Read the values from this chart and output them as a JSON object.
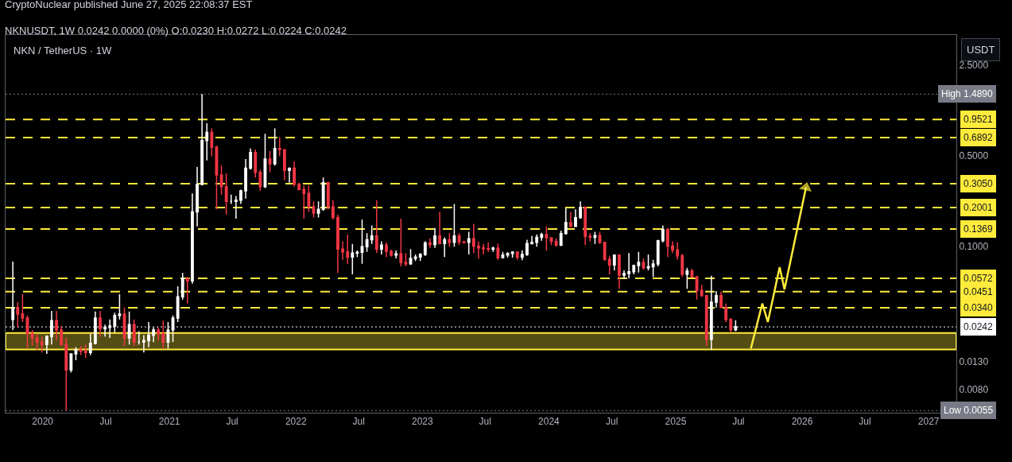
{
  "chart_data": {
    "type": "candlestick",
    "title": "CryptoNuclear published June 27, 2025 22:08:37 EST",
    "subtitle": "NKNUSDT, 1W 0.0242 0.0000 (0%) O:0.0230 H:0.0272 L:0.0224 C:0.0242",
    "ylabel": "USDT",
    "annotations": [
      "NKN / TetherUS · 1W"
    ],
    "x": [
      "2019-10-07",
      "2019-10-21",
      "2019-11-04",
      "2019-11-18",
      "2019-12-02",
      "2019-12-16",
      "2019-12-30",
      "2020-01-13",
      "2020-01-27",
      "2020-02-10",
      "2020-02-24",
      "2020-03-09",
      "2020-03-23",
      "2020-04-06",
      "2020-04-20",
      "2020-05-04",
      "2020-05-18",
      "2020-06-01",
      "2020-06-15",
      "2020-06-29",
      "2020-07-13",
      "2020-07-27",
      "2020-08-10",
      "2020-08-24",
      "2020-09-07",
      "2020-09-21",
      "2020-10-05",
      "2020-10-19",
      "2020-11-02",
      "2020-11-16",
      "2020-11-30",
      "2020-12-14",
      "2020-12-28",
      "2021-01-11",
      "2021-01-25",
      "2021-02-08",
      "2021-02-22",
      "2021-03-08",
      "2021-03-22",
      "2021-04-05",
      "2021-04-19",
      "2021-05-03",
      "2021-05-17",
      "2021-05-31",
      "2021-06-14",
      "2021-06-28",
      "2021-07-12",
      "2021-07-26",
      "2021-08-09",
      "2021-08-23",
      "2021-09-06",
      "2021-09-20",
      "2021-10-04",
      "2021-10-18",
      "2021-11-01",
      "2021-11-15",
      "2021-11-29",
      "2021-12-13",
      "2021-12-27",
      "2022-01-10",
      "2022-01-24",
      "2022-02-07",
      "2022-02-21",
      "2022-03-07",
      "2022-03-21",
      "2022-04-04",
      "2022-04-18",
      "2022-05-02",
      "2022-05-16",
      "2022-05-30",
      "2022-06-13",
      "2022-06-27",
      "2022-07-11",
      "2022-07-25",
      "2022-08-08",
      "2022-08-22",
      "2022-09-05",
      "2022-09-19",
      "2022-10-03",
      "2022-10-17",
      "2022-10-31",
      "2022-11-14",
      "2022-11-28",
      "2022-12-12",
      "2022-12-26",
      "2023-01-09",
      "2023-01-23",
      "2023-02-06",
      "2023-02-20",
      "2023-03-06",
      "2023-03-20",
      "2023-04-03",
      "2023-04-17",
      "2023-05-01",
      "2023-05-15",
      "2023-05-29",
      "2023-06-12",
      "2023-06-26",
      "2023-07-10",
      "2023-07-24",
      "2023-08-07",
      "2023-08-21",
      "2023-09-04",
      "2023-09-18",
      "2023-10-02",
      "2023-10-16",
      "2023-10-30",
      "2023-11-13",
      "2023-11-27",
      "2023-12-11",
      "2023-12-25",
      "2024-01-08",
      "2024-01-22",
      "2024-02-05",
      "2024-02-19",
      "2024-03-04",
      "2024-03-18",
      "2024-04-01",
      "2024-04-15",
      "2024-04-29",
      "2024-05-13",
      "2024-05-27",
      "2024-06-10",
      "2024-06-24",
      "2024-07-08",
      "2024-07-22",
      "2024-08-05",
      "2024-08-19",
      "2024-09-02",
      "2024-09-16",
      "2024-09-30",
      "2024-10-14",
      "2024-10-28",
      "2024-11-11",
      "2024-11-25",
      "2024-12-09",
      "2024-12-23",
      "2025-01-06",
      "2025-01-20",
      "2025-02-03",
      "2025-02-17",
      "2025-03-03",
      "2025-03-17",
      "2025-03-31",
      "2025-04-14",
      "2025-04-28",
      "2025-05-12",
      "2025-05-26",
      "2025-06-09",
      "2025-06-23"
    ],
    "ohlc": [
      [
        0.0276,
        0.0769,
        0.0229,
        0.0341
      ],
      [
        0.0341,
        0.0375,
        0.024,
        0.0303
      ],
      [
        0.0303,
        0.0432,
        0.0264,
        0.0283
      ],
      [
        0.0283,
        0.0296,
        0.0165,
        0.0214
      ],
      [
        0.0214,
        0.0229,
        0.0173,
        0.0199
      ],
      [
        0.0199,
        0.0214,
        0.0161,
        0.0185
      ],
      [
        0.0185,
        0.0204,
        0.0154,
        0.0177
      ],
      [
        0.0177,
        0.0209,
        0.015,
        0.0204
      ],
      [
        0.0204,
        0.0321,
        0.0177,
        0.027
      ],
      [
        0.027,
        0.0321,
        0.019,
        0.0229
      ],
      [
        0.0229,
        0.0246,
        0.0173,
        0.0177
      ],
      [
        0.0177,
        0.0199,
        0.0055,
        0.0113
      ],
      [
        0.0113,
        0.015,
        0.0108,
        0.015
      ],
      [
        0.015,
        0.0169,
        0.0134,
        0.0161
      ],
      [
        0.0161,
        0.0173,
        0.0147,
        0.0157
      ],
      [
        0.0157,
        0.0177,
        0.014,
        0.0154
      ],
      [
        0.0154,
        0.0214,
        0.0147,
        0.0181
      ],
      [
        0.0181,
        0.0318,
        0.0177,
        0.0283
      ],
      [
        0.0283,
        0.0321,
        0.0204,
        0.0234
      ],
      [
        0.0234,
        0.0252,
        0.0204,
        0.024
      ],
      [
        0.024,
        0.0276,
        0.0199,
        0.0246
      ],
      [
        0.0246,
        0.0311,
        0.0219,
        0.0296
      ],
      [
        0.0296,
        0.0432,
        0.0276,
        0.0303
      ],
      [
        0.0303,
        0.0341,
        0.0173,
        0.0199
      ],
      [
        0.0199,
        0.0318,
        0.0177,
        0.0252
      ],
      [
        0.0252,
        0.0276,
        0.0173,
        0.0185
      ],
      [
        0.0185,
        0.0224,
        0.0177,
        0.0185
      ],
      [
        0.0185,
        0.0209,
        0.0154,
        0.019
      ],
      [
        0.019,
        0.0264,
        0.0169,
        0.0209
      ],
      [
        0.0209,
        0.024,
        0.0185,
        0.0229
      ],
      [
        0.0229,
        0.024,
        0.019,
        0.0214
      ],
      [
        0.0214,
        0.027,
        0.0165,
        0.0185
      ],
      [
        0.0185,
        0.0264,
        0.0165,
        0.0229
      ],
      [
        0.0229,
        0.0296,
        0.0185,
        0.0283
      ],
      [
        0.0283,
        0.0497,
        0.0264,
        0.0412
      ],
      [
        0.0412,
        0.0628,
        0.0393,
        0.0572
      ],
      [
        0.0572,
        0.0586,
        0.0366,
        0.0546
      ],
      [
        0.0546,
        0.257,
        0.052,
        0.185
      ],
      [
        0.185,
        0.41,
        0.143,
        0.302
      ],
      [
        0.302,
        1.489,
        0.296,
        0.655
      ],
      [
        0.655,
        0.89,
        0.461,
        0.755
      ],
      [
        0.755,
        0.81,
        0.495,
        0.583
      ],
      [
        0.583,
        0.597,
        0.194,
        0.356
      ],
      [
        0.356,
        0.42,
        0.251,
        0.289
      ],
      [
        0.289,
        0.365,
        0.176,
        0.223
      ],
      [
        0.223,
        0.251,
        0.213,
        0.223
      ],
      [
        0.223,
        0.245,
        0.164,
        0.228
      ],
      [
        0.228,
        0.275,
        0.213,
        0.269
      ],
      [
        0.269,
        0.472,
        0.234,
        0.401
      ],
      [
        0.401,
        0.569,
        0.392,
        0.531
      ],
      [
        0.531,
        0.557,
        0.34,
        0.373
      ],
      [
        0.373,
        0.392,
        0.269,
        0.289
      ],
      [
        0.289,
        0.738,
        0.282,
        0.472
      ],
      [
        0.472,
        0.544,
        0.373,
        0.434
      ],
      [
        0.434,
        0.81,
        0.42,
        0.569
      ],
      [
        0.569,
        0.693,
        0.495,
        0.557
      ],
      [
        0.557,
        0.56,
        0.324,
        0.386
      ],
      [
        0.386,
        0.401,
        0.31,
        0.401
      ],
      [
        0.401,
        0.451,
        0.289,
        0.302
      ],
      [
        0.302,
        0.31,
        0.272,
        0.275
      ],
      [
        0.275,
        0.296,
        0.164,
        0.257
      ],
      [
        0.257,
        0.296,
        0.185,
        0.203
      ],
      [
        0.203,
        0.223,
        0.168,
        0.181
      ],
      [
        0.181,
        0.223,
        0.168,
        0.194
      ],
      [
        0.194,
        0.34,
        0.189,
        0.31
      ],
      [
        0.31,
        0.315,
        0.194,
        0.203
      ],
      [
        0.203,
        0.228,
        0.162,
        0.168
      ],
      [
        0.168,
        0.176,
        0.0628,
        0.0959
      ],
      [
        0.0959,
        0.11,
        0.0794,
        0.0914
      ],
      [
        0.0914,
        0.124,
        0.074,
        0.0833
      ],
      [
        0.0833,
        0.105,
        0.0614,
        0.0894
      ],
      [
        0.0894,
        0.0936,
        0.0833,
        0.0906
      ],
      [
        0.0906,
        0.162,
        0.074,
        0.1
      ],
      [
        0.1,
        0.127,
        0.0914,
        0.113
      ],
      [
        0.113,
        0.146,
        0.105,
        0.121
      ],
      [
        0.121,
        0.228,
        0.0894,
        0.0959
      ],
      [
        0.0959,
        0.11,
        0.0873,
        0.103
      ],
      [
        0.103,
        0.108,
        0.0833,
        0.0923
      ],
      [
        0.0923,
        0.095,
        0.084,
        0.0864
      ],
      [
        0.0864,
        0.0936,
        0.0813,
        0.0881
      ],
      [
        0.0881,
        0.164,
        0.0706,
        0.0758
      ],
      [
        0.0758,
        0.0894,
        0.0706,
        0.074
      ],
      [
        0.074,
        0.0959,
        0.0723,
        0.0813
      ],
      [
        0.0813,
        0.0873,
        0.0776,
        0.0833
      ],
      [
        0.0833,
        0.0894,
        0.0776,
        0.0873
      ],
      [
        0.0873,
        0.11,
        0.0852,
        0.107
      ],
      [
        0.107,
        0.116,
        0.0981,
        0.104
      ],
      [
        0.104,
        0.139,
        0.0981,
        0.121
      ],
      [
        0.121,
        0.185,
        0.105,
        0.106
      ],
      [
        0.106,
        0.118,
        0.0833,
        0.113
      ],
      [
        0.113,
        0.127,
        0.1,
        0.108
      ],
      [
        0.108,
        0.213,
        0.1,
        0.121
      ],
      [
        0.121,
        0.127,
        0.103,
        0.109
      ],
      [
        0.109,
        0.111,
        0.105,
        0.108
      ],
      [
        0.108,
        0.13,
        0.0873,
        0.115
      ],
      [
        0.115,
        0.15,
        0.0894,
        0.101
      ],
      [
        0.101,
        0.11,
        0.0813,
        0.0981
      ],
      [
        0.0981,
        0.105,
        0.0873,
        0.0967
      ],
      [
        0.0967,
        0.108,
        0.0914,
        0.0959
      ],
      [
        0.0959,
        0.1,
        0.0914,
        0.0976
      ],
      [
        0.0976,
        0.106,
        0.0794,
        0.0825
      ],
      [
        0.0825,
        0.0914,
        0.0813,
        0.0864
      ],
      [
        0.0864,
        0.0906,
        0.0825,
        0.0888
      ],
      [
        0.0888,
        0.0923,
        0.0825,
        0.091
      ],
      [
        0.091,
        0.0923,
        0.0794,
        0.0833
      ],
      [
        0.0833,
        0.0936,
        0.0787,
        0.0873
      ],
      [
        0.0873,
        0.113,
        0.0852,
        0.106
      ],
      [
        0.106,
        0.121,
        0.104,
        0.108
      ],
      [
        0.108,
        0.124,
        0.1,
        0.118
      ],
      [
        0.118,
        0.128,
        0.111,
        0.124
      ],
      [
        0.124,
        0.143,
        0.0936,
        0.117
      ],
      [
        0.117,
        0.118,
        0.103,
        0.11
      ],
      [
        0.11,
        0.116,
        0.1,
        0.103
      ],
      [
        0.103,
        0.133,
        0.101,
        0.126
      ],
      [
        0.126,
        0.198,
        0.124,
        0.153
      ],
      [
        0.153,
        0.185,
        0.141,
        0.143
      ],
      [
        0.143,
        0.194,
        0.142,
        0.167
      ],
      [
        0.167,
        0.223,
        0.164,
        0.201
      ],
      [
        0.201,
        0.205,
        0.103,
        0.12
      ],
      [
        0.12,
        0.127,
        0.11,
        0.118
      ],
      [
        0.118,
        0.13,
        0.105,
        0.122
      ],
      [
        0.122,
        0.13,
        0.105,
        0.108
      ],
      [
        0.108,
        0.108,
        0.0776,
        0.0802
      ],
      [
        0.0802,
        0.0852,
        0.0614,
        0.0723
      ],
      [
        0.0723,
        0.0873,
        0.0658,
        0.0864
      ],
      [
        0.0864,
        0.0873,
        0.0474,
        0.0605
      ],
      [
        0.0605,
        0.0658,
        0.0566,
        0.0622
      ],
      [
        0.0622,
        0.0894,
        0.0572,
        0.0643
      ],
      [
        0.0643,
        0.073,
        0.0614,
        0.0717
      ],
      [
        0.0717,
        0.0914,
        0.0634,
        0.0758
      ],
      [
        0.0758,
        0.0813,
        0.0665,
        0.069
      ],
      [
        0.069,
        0.0873,
        0.0658,
        0.07
      ],
      [
        0.07,
        0.0794,
        0.0586,
        0.0736
      ],
      [
        0.0736,
        0.113,
        0.0706,
        0.111
      ],
      [
        0.111,
        0.146,
        0.108,
        0.136
      ],
      [
        0.136,
        0.139,
        0.0833,
        0.101
      ],
      [
        0.101,
        0.11,
        0.0894,
        0.0945
      ],
      [
        0.0945,
        0.108,
        0.0794,
        0.0852
      ],
      [
        0.0852,
        0.0881,
        0.0586,
        0.0614
      ],
      [
        0.0614,
        0.069,
        0.0474,
        0.0652
      ],
      [
        0.0652,
        0.0674,
        0.0578,
        0.0586
      ],
      [
        0.0586,
        0.0599,
        0.0393,
        0.0461
      ],
      [
        0.0461,
        0.0509,
        0.0412,
        0.0421
      ],
      [
        0.0421,
        0.0425,
        0.0173,
        0.0194
      ],
      [
        0.0194,
        0.0599,
        0.0161,
        0.0375
      ],
      [
        0.0375,
        0.0457,
        0.0341,
        0.0421
      ],
      [
        0.0421,
        0.0452,
        0.0338,
        0.0341
      ],
      [
        0.0341,
        0.0366,
        0.0264,
        0.0276
      ],
      [
        0.0276,
        0.0283,
        0.0219,
        0.023
      ],
      [
        0.023,
        0.0272,
        0.0224,
        0.0242
      ]
    ],
    "colors": [
      "#ffffff",
      "#f23645",
      "#f23645",
      "#f23645",
      "#f23645",
      "#f23645",
      "#f23645",
      "#ffffff",
      "#ffffff",
      "#f23645",
      "#f23645",
      "#f23645",
      "#ffffff",
      "#ffffff",
      "#f23645",
      "#f23645",
      "#ffffff",
      "#ffffff",
      "#f23645",
      "#ffffff",
      "#ffffff",
      "#ffffff",
      "#ffffff",
      "#f23645",
      "#ffffff",
      "#f23645",
      "#ffffff",
      "#ffffff",
      "#ffffff",
      "#ffffff",
      "#f23645",
      "#f23645",
      "#ffffff",
      "#ffffff",
      "#ffffff",
      "#ffffff",
      "#f23645",
      "#ffffff",
      "#ffffff",
      "#ffffff",
      "#ffffff",
      "#f23645",
      "#f23645",
      "#f23645",
      "#f23645",
      "#ffffff",
      "#ffffff",
      "#ffffff",
      "#ffffff",
      "#ffffff",
      "#f23645",
      "#f23645",
      "#ffffff",
      "#f23645",
      "#ffffff",
      "#f23645",
      "#f23645",
      "#ffffff",
      "#f23645",
      "#f23645",
      "#f23645",
      "#f23645",
      "#f23645",
      "#ffffff",
      "#ffffff",
      "#f23645",
      "#f23645",
      "#f23645",
      "#f23645",
      "#f23645",
      "#ffffff",
      "#ffffff",
      "#ffffff",
      "#ffffff",
      "#ffffff",
      "#f23645",
      "#ffffff",
      "#f23645",
      "#f23645",
      "#ffffff",
      "#f23645",
      "#f23645",
      "#ffffff",
      "#ffffff",
      "#ffffff",
      "#ffffff",
      "#f23645",
      "#ffffff",
      "#f23645",
      "#ffffff",
      "#f23645",
      "#ffffff",
      "#f23645",
      "#f23645",
      "#ffffff",
      "#f23645",
      "#f23645",
      "#f23645",
      "#f23645",
      "#ffffff",
      "#f23645",
      "#ffffff",
      "#ffffff",
      "#ffffff",
      "#f23645",
      "#ffffff",
      "#ffffff",
      "#ffffff",
      "#ffffff",
      "#ffffff",
      "#f23645",
      "#f23645",
      "#f23645",
      "#ffffff",
      "#ffffff",
      "#f23645",
      "#ffffff",
      "#ffffff",
      "#f23645",
      "#f23645",
      "#ffffff",
      "#f23645",
      "#f23645",
      "#f23645",
      "#ffffff",
      "#f23645",
      "#ffffff",
      "#ffffff",
      "#ffffff",
      "#ffffff",
      "#f23645",
      "#ffffff",
      "#ffffff",
      "#ffffff",
      "#ffffff",
      "#f23645",
      "#f23645",
      "#f23645",
      "#f23645",
      "#ffffff",
      "#f23645",
      "#f23645",
      "#f23645",
      "#f23645",
      "#ffffff",
      "#ffffff",
      "#f23645",
      "#f23645",
      "#f23645",
      "#ffffff"
    ],
    "series": [
      {
        "type": "line",
        "x": [
          "2025-08-06",
          "2025-09-08",
          "2025-09-24",
          "2025-10-28",
          "2025-11-11",
          "2026-01-12"
        ],
        "values": [
          0.0165,
          0.0366,
          0.0264,
          0.0697,
          0.047,
          0.285
        ],
        "color": "#ffeb3b"
      }
    ],
    "log": "y",
    "xlim": [
      "2019-09-16",
      "2027-03-22"
    ],
    "ylim": [
      0.0053,
      4.24
    ],
    "xticks": [
      {
        "value": "2020-01-01",
        "label": "2020"
      },
      {
        "value": "2020-07-01",
        "label": "Jul"
      },
      {
        "value": "2021-01-01",
        "label": "2021"
      },
      {
        "value": "2021-07-01",
        "label": "Jul"
      },
      {
        "value": "2022-01-01",
        "label": "2022"
      },
      {
        "value": "2022-07-01",
        "label": "Jul"
      },
      {
        "value": "2023-01-01",
        "label": "2023"
      },
      {
        "value": "2023-07-01",
        "label": "Jul"
      },
      {
        "value": "2024-01-01",
        "label": "2024"
      },
      {
        "value": "2024-07-01",
        "label": "Jul"
      },
      {
        "value": "2025-01-01",
        "label": "2025"
      },
      {
        "value": "2025-07-01",
        "label": "Jul"
      },
      {
        "value": "2026-01-01",
        "label": "2026"
      },
      {
        "value": "2026-07-01",
        "label": "Jul"
      },
      {
        "value": "2027-01-01",
        "label": "2027"
      }
    ],
    "yticks": [
      {
        "value": 2.5,
        "label": "2.5000"
      },
      {
        "value": 0.5,
        "label": "0.5000"
      },
      {
        "value": 0.1,
        "label": "0.1000"
      },
      {
        "value": 0.013,
        "label": "0.0130"
      },
      {
        "value": 0.008,
        "label": "0.0080"
      }
    ],
    "ref_lines": [
      {
        "axis": "y",
        "value": 1.489,
        "label": "High 1.4890",
        "color": "#787b86",
        "line_style": "dotted"
      },
      {
        "axis": "y",
        "value": 0.9521,
        "label": "0.9521",
        "color": "#ffeb3b",
        "line_style": "dashed"
      },
      {
        "axis": "y",
        "value": 0.6892,
        "label": "0.6892",
        "color": "#ffeb3b",
        "line_style": "dashed"
      },
      {
        "axis": "y",
        "value": 0.305,
        "label": "0.3050",
        "color": "#ffeb3b",
        "line_style": "dashed"
      },
      {
        "axis": "y",
        "value": 0.2001,
        "label": "0.2001",
        "color": "#ffeb3b",
        "line_style": "dashed"
      },
      {
        "axis": "y",
        "value": 0.1369,
        "label": "0.1369",
        "color": "#ffeb3b",
        "line_style": "dashed"
      },
      {
        "axis": "y",
        "value": 0.0572,
        "label": "0.0572",
        "color": "#ffeb3b",
        "line_style": "dashed"
      },
      {
        "axis": "y",
        "value": 0.0451,
        "label": "0.0451",
        "color": "#ffeb3b",
        "line_style": "dashed"
      },
      {
        "axis": "y",
        "value": 0.034,
        "label": "0.0340",
        "color": "#ffeb3b",
        "line_style": "dashed"
      },
      {
        "axis": "y",
        "value": 0.0242,
        "label": "0.0242",
        "color": "#ffffff",
        "line_style": "dotted"
      },
      {
        "axis": "y",
        "value": 0.0055,
        "label": "Low 0.0055",
        "color": "#787b86",
        "line_style": "dotted"
      }
    ],
    "bands": [
      {
        "axis": "y",
        "from": 0.0162,
        "to": 0.0217,
        "color": "#ffeb3b"
      }
    ]
  }
}
